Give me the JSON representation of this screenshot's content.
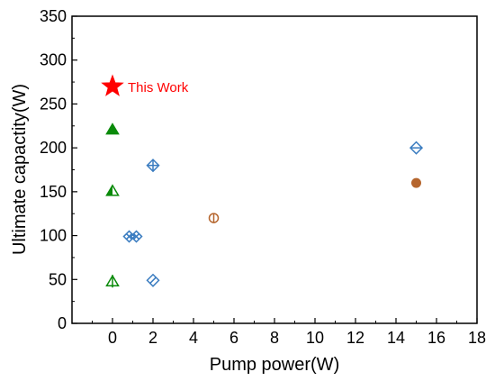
{
  "chart_data": {
    "type": "scatter",
    "xlabel": "Pump power(W)",
    "ylabel": "Ultimate capactity(W)",
    "xlim": [
      -2,
      18
    ],
    "ylim": [
      0,
      350
    ],
    "xticks": [
      0,
      2,
      4,
      6,
      8,
      10,
      12,
      14,
      16,
      18
    ],
    "yticks": [
      0,
      50,
      100,
      150,
      200,
      250,
      300,
      350
    ],
    "grid": false,
    "legend": "none",
    "points": [
      {
        "x": 0,
        "y": 270,
        "marker": "star",
        "color": "#ff0000",
        "label": "This Work"
      },
      {
        "x": 0,
        "y": 221,
        "marker": "triangle-filled",
        "color": "#0a8a0a"
      },
      {
        "x": 0,
        "y": 151,
        "marker": "triangle-half",
        "color": "#0a8a0a"
      },
      {
        "x": 0,
        "y": 48,
        "marker": "triangle-line",
        "color": "#0a8a0a"
      },
      {
        "x": 1,
        "y": 99,
        "marker": "diamond-x",
        "color": "#3a7cc0"
      },
      {
        "x": 2,
        "y": 180,
        "marker": "diamond-plus",
        "color": "#3a7cc0"
      },
      {
        "x": 2,
        "y": 49,
        "marker": "diamond-half",
        "color": "#3a7cc0"
      },
      {
        "x": 15,
        "y": 200,
        "marker": "diamond-line",
        "color": "#3a7cc0"
      },
      {
        "x": 5,
        "y": 120,
        "marker": "circle-line",
        "color": "#b5652d"
      },
      {
        "x": 15,
        "y": 160,
        "marker": "circle-filled",
        "color": "#b5652d"
      }
    ]
  }
}
